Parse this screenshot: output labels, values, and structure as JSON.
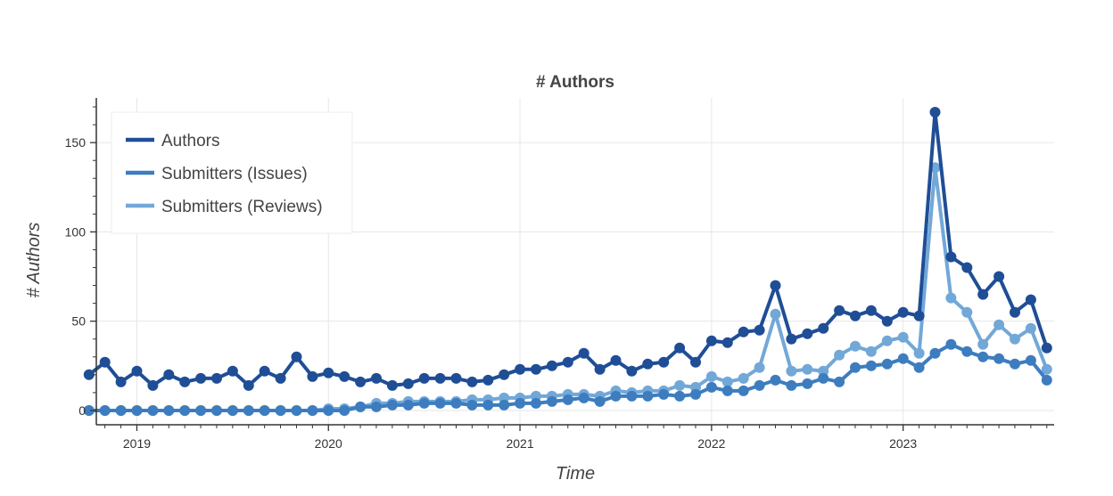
{
  "chart_data": {
    "type": "line",
    "title": "# Authors",
    "xlabel": "Time",
    "ylabel": "# Authors",
    "xlim": [
      "2018-10-15",
      "2023-10-15"
    ],
    "ylim": [
      -8,
      175
    ],
    "x_ticks": [
      "2019",
      "2020",
      "2021",
      "2022",
      "2023"
    ],
    "y_ticks": [
      0,
      50,
      100,
      150
    ],
    "grid": true,
    "legend_position": "top-left",
    "x": [
      "2018-10",
      "2018-11",
      "2018-12",
      "2019-01",
      "2019-02",
      "2019-03",
      "2019-04",
      "2019-05",
      "2019-06",
      "2019-07",
      "2019-08",
      "2019-09",
      "2019-10",
      "2019-11",
      "2019-12",
      "2020-01",
      "2020-02",
      "2020-03",
      "2020-04",
      "2020-05",
      "2020-06",
      "2020-07",
      "2020-08",
      "2020-09",
      "2020-10",
      "2020-11",
      "2020-12",
      "2021-01",
      "2021-02",
      "2021-03",
      "2021-04",
      "2021-05",
      "2021-06",
      "2021-07",
      "2021-08",
      "2021-09",
      "2021-10",
      "2021-11",
      "2021-12",
      "2022-01",
      "2022-02",
      "2022-03",
      "2022-04",
      "2022-05",
      "2022-06",
      "2022-07",
      "2022-08",
      "2022-09",
      "2022-10",
      "2022-11",
      "2022-12",
      "2023-01",
      "2023-02",
      "2023-03",
      "2023-04",
      "2023-05",
      "2023-06",
      "2023-07",
      "2023-08",
      "2023-09",
      "2023-10"
    ],
    "series": [
      {
        "name": "Authors",
        "color": "#1f4e96",
        "values": [
          20,
          27,
          16,
          22,
          14,
          20,
          16,
          18,
          18,
          22,
          14,
          22,
          18,
          30,
          19,
          21,
          19,
          16,
          18,
          14,
          15,
          18,
          18,
          18,
          16,
          17,
          20,
          23,
          23,
          25,
          27,
          32,
          23,
          28,
          22,
          26,
          27,
          35,
          27,
          39,
          38,
          44,
          45,
          70,
          40,
          43,
          46,
          56,
          53,
          56,
          50,
          55,
          53,
          167,
          86,
          80,
          65,
          75,
          55,
          62,
          35
        ]
      },
      {
        "name": "Submitters (Issues)",
        "color": "#3d7dbf",
        "values": [
          0,
          0,
          0,
          0,
          0,
          0,
          0,
          0,
          0,
          0,
          0,
          0,
          0,
          0,
          0,
          0,
          0,
          2,
          2,
          3,
          3,
          4,
          4,
          4,
          3,
          3,
          3,
          4,
          4,
          5,
          6,
          7,
          5,
          8,
          8,
          8,
          9,
          8,
          9,
          13,
          11,
          11,
          14,
          17,
          14,
          15,
          18,
          16,
          24,
          25,
          26,
          29,
          24,
          32,
          37,
          33,
          30,
          29,
          26,
          28,
          17
        ]
      },
      {
        "name": "Submitters (Reviews)",
        "color": "#72a8d8",
        "values": [
          0,
          0,
          0,
          0,
          0,
          0,
          0,
          0,
          0,
          0,
          0,
          0,
          0,
          0,
          0,
          1,
          1,
          2,
          4,
          4,
          5,
          5,
          5,
          5,
          6,
          6,
          7,
          7,
          8,
          8,
          9,
          9,
          8,
          11,
          10,
          11,
          11,
          14,
          13,
          19,
          16,
          18,
          24,
          54,
          22,
          23,
          22,
          31,
          36,
          33,
          39,
          41,
          32,
          136,
          63,
          55,
          37,
          48,
          40,
          46,
          23
        ]
      }
    ]
  }
}
